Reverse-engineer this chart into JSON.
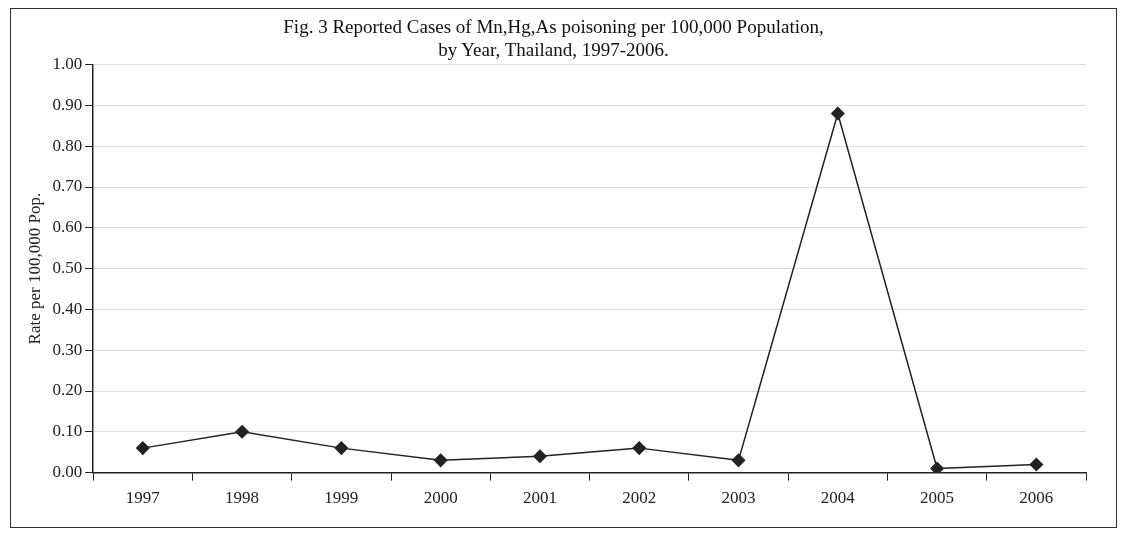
{
  "chart_data": {
    "type": "line",
    "title": "Fig. 3 Reported Cases of Mn,Hg,As poisoning per 100,000 Population,",
    "subtitle": "by Year, Thailand, 1997-2006.",
    "ylabel": "Rate per 100,000 Pop.",
    "categories": [
      "1997",
      "1998",
      "1999",
      "2000",
      "2001",
      "2002",
      "2003",
      "2004",
      "2005",
      "2006"
    ],
    "series": [
      {
        "color": "#222222",
        "values": [
          0.06,
          0.1,
          0.06,
          0.03,
          0.04,
          0.06,
          0.03,
          0.88,
          0.01,
          0.02
        ]
      }
    ],
    "ylim": [
      0,
      1
    ],
    "yticks": [
      {
        "value": 0,
        "label": "0.00"
      },
      {
        "value": 0.1,
        "label": "0.10"
      },
      {
        "value": 0.2,
        "label": "0.20"
      },
      {
        "value": 0.3,
        "label": "0.30"
      },
      {
        "value": 0.4,
        "label": "0.40"
      },
      {
        "value": 0.5,
        "label": "0.50"
      },
      {
        "value": 0.6,
        "label": "0.60"
      },
      {
        "value": 0.7,
        "label": "0.70"
      },
      {
        "value": 0.8,
        "label": "0.80"
      },
      {
        "value": 0.9,
        "label": "0.90"
      },
      {
        "value": 1,
        "label": "1.00"
      }
    ],
    "grid": "y",
    "legend": false,
    "marker": "diamond",
    "line_style": "solid"
  }
}
